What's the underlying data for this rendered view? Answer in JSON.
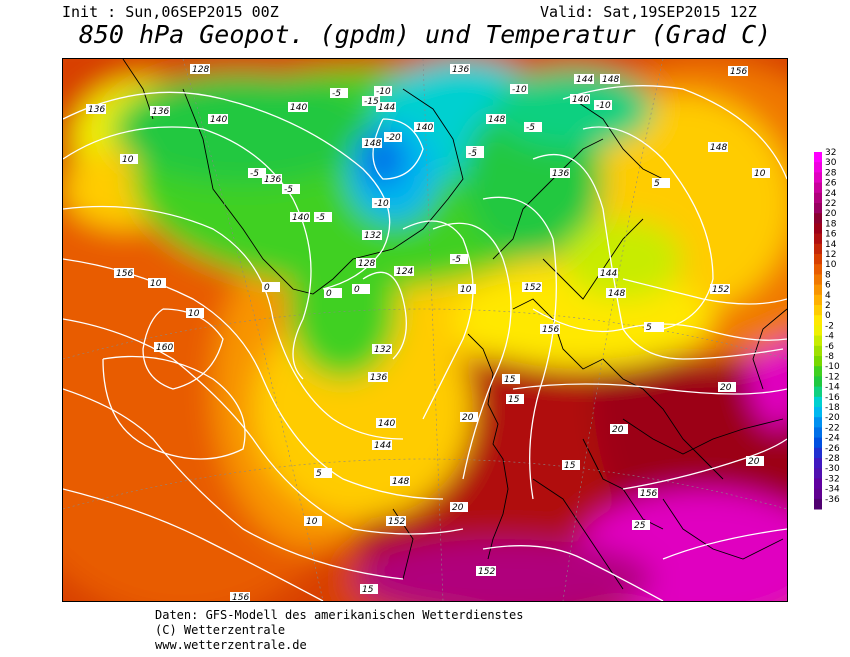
{
  "header": {
    "init": "Init : Sun,06SEP2015 00Z",
    "valid": "Valid: Sat,19SEP2015 12Z",
    "title": "850 hPa Geopot. (gpdm) und Temperatur (Grad C)"
  },
  "footer": {
    "line1": "Daten: GFS-Modell des amerikanischen Wetterdienstes",
    "line2": "(C) Wetterzentrale",
    "line3": "www.wetterzentrale.de"
  },
  "legend": {
    "unit": "Grad C",
    "levels": [
      "32",
      "30",
      "28",
      "26",
      "24",
      "22",
      "20",
      "18",
      "16",
      "14",
      "12",
      "10",
      "8",
      "6",
      "4",
      "2",
      "0",
      "-2",
      "-4",
      "-6",
      "-8",
      "-10",
      "-12",
      "-14",
      "-16",
      "-18",
      "-20",
      "-22",
      "-24",
      "-26",
      "-28",
      "-30",
      "-32",
      "-34",
      "-36"
    ],
    "colors": [
      "#ff00ff",
      "#f000e0",
      "#e000c0",
      "#c8009c",
      "#b0007c",
      "#980060",
      "#8a0030",
      "#9c0018",
      "#b01010",
      "#c42808",
      "#d84000",
      "#e85c00",
      "#f07800",
      "#f89400",
      "#ffb000",
      "#ffcc00",
      "#ffe800",
      "#f0f000",
      "#c8ec00",
      "#a0e000",
      "#78d800",
      "#40d020",
      "#20c840",
      "#10d080",
      "#00d0d0",
      "#00b8f0",
      "#0090f0",
      "#0070e8",
      "#0050e0",
      "#2030d0",
      "#4018c0",
      "#5010b0",
      "#6000a0",
      "#600090",
      "#500070"
    ]
  },
  "map": {
    "geopotential_labels": [
      "128",
      "136",
      "136",
      "140",
      "140",
      "144",
      "148",
      "148",
      "136",
      "136",
      "140",
      "140",
      "144",
      "148",
      "132",
      "128",
      "124",
      "132",
      "136",
      "140",
      "144",
      "148",
      "152",
      "152",
      "156",
      "156",
      "160",
      "136",
      "144",
      "148",
      "152",
      "156",
      "156",
      "140",
      "148",
      "152",
      "156",
      "156"
    ],
    "temperature_labels": [
      "-10",
      "-15",
      "-20",
      "-10",
      "-5",
      "-5",
      "-5",
      "-5",
      "-10",
      "-10",
      "-5",
      "-5",
      "-5",
      "0",
      "0",
      "0",
      "5",
      "5",
      "10",
      "10",
      "10",
      "10",
      "10",
      "15",
      "15",
      "15",
      "15",
      "20",
      "20",
      "20",
      "20",
      "20",
      "25",
      "5",
      "10",
      "10",
      "-5"
    ]
  }
}
